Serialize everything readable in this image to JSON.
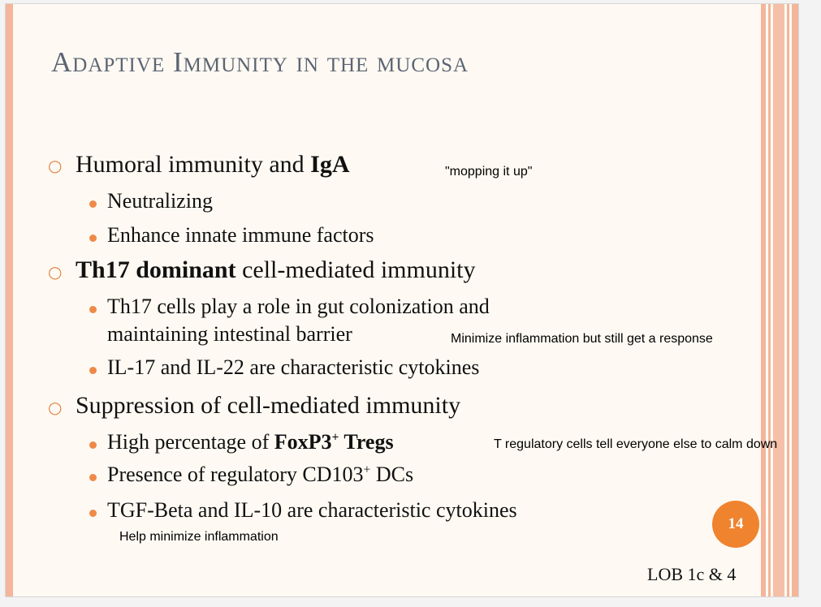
{
  "slide": {
    "title": "Adaptive Immunity in the mucosa",
    "page_number": "14",
    "footer": "LOB 1c & 4"
  },
  "bullets": {
    "humoral": {
      "pre": "Humoral immunity and ",
      "bold": "IgA",
      "note": "\"mopping it up\""
    },
    "neutralizing": "Neutralizing",
    "enhance": "Enhance innate immune factors",
    "th17": {
      "bold": "Th17 dominant",
      "post": " cell-mediated immunity"
    },
    "th17_cells_line1": "Th17 cells play a role in gut colonization and",
    "th17_cells_line2": "maintaining intestinal barrier",
    "th17_note": "Minimize inflammation but still get a response",
    "il17": "IL-17 and IL-22 are characteristic cytokines",
    "suppression": "Suppression of cell-mediated immunity",
    "foxp3": {
      "pre": "High percentage of ",
      "bold": "FoxP3",
      "sup": "+",
      "bold_after": " Tregs",
      "note": "T regulatory cells tell everyone else to calm down"
    },
    "cd103": {
      "pre": "Presence of regulatory CD103",
      "sup": "+",
      "post": " DCs"
    },
    "tgf": "TGF-Beta and IL-10 are characteristic cytokines",
    "tgf_note": "Help minimize inflammation"
  },
  "colors": {
    "accent_orange": "#f0832e",
    "bullet_orange": "#ee8a48",
    "stripe_pink": "#f4b59b",
    "title_gray": "#5c6473",
    "background": "#fefaf3"
  }
}
